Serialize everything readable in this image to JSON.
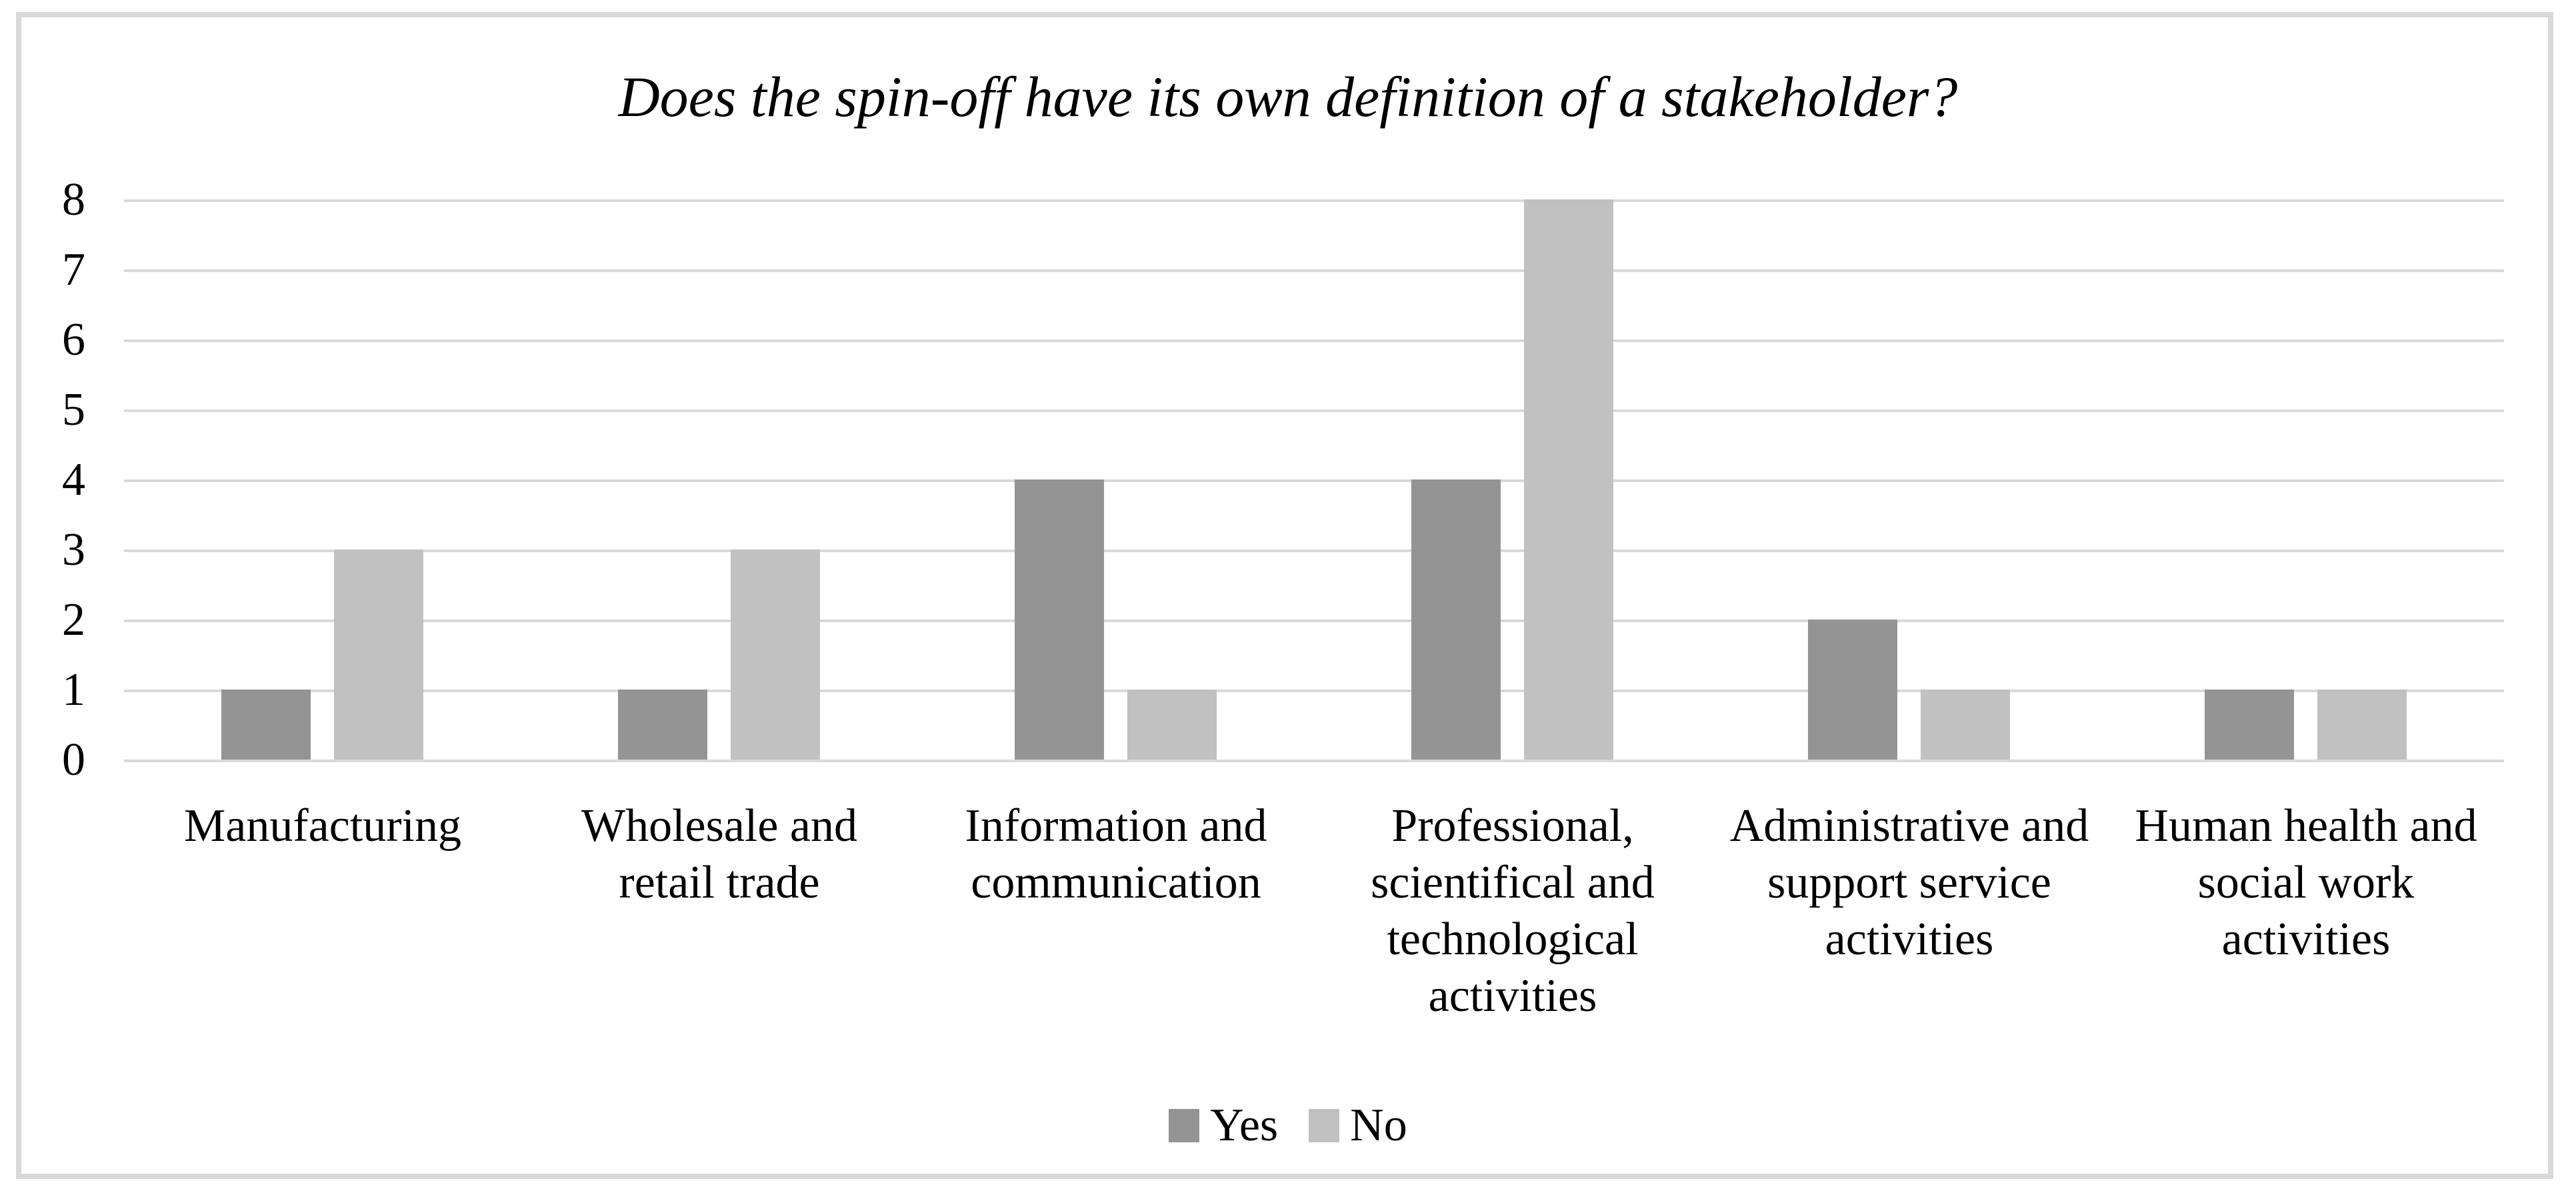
{
  "chart_data": {
    "type": "bar",
    "title": "Does the spin-off have its own definition of a stakeholder?",
    "categories": [
      "Manufacturing",
      "Wholesale and\nretail trade",
      "Information and\ncommunication",
      "Professional,\nscientifical and\ntechnological\nactivities",
      "Administrative and\nsupport service\nactivities",
      "Human health and\nsocial work\nactivities"
    ],
    "series": [
      {
        "name": "Yes",
        "color": "#949494",
        "values": [
          1,
          1,
          4,
          4,
          2,
          1
        ]
      },
      {
        "name": "No",
        "color": "#C1C1C1",
        "values": [
          3,
          3,
          1,
          8,
          1,
          1
        ]
      }
    ],
    "ylim": [
      0,
      8
    ],
    "yticks": [
      0,
      1,
      2,
      3,
      4,
      5,
      6,
      7,
      8
    ],
    "xlabel": "",
    "ylabel": "",
    "grid": true,
    "legend_position": "bottom"
  },
  "colors": {
    "background": "#FFFFFF",
    "frame_border": "#D9D9D9",
    "gridline": "#D9D9D9",
    "text": "#000000",
    "series_yes": "#949494",
    "series_no": "#C1C1C1"
  }
}
